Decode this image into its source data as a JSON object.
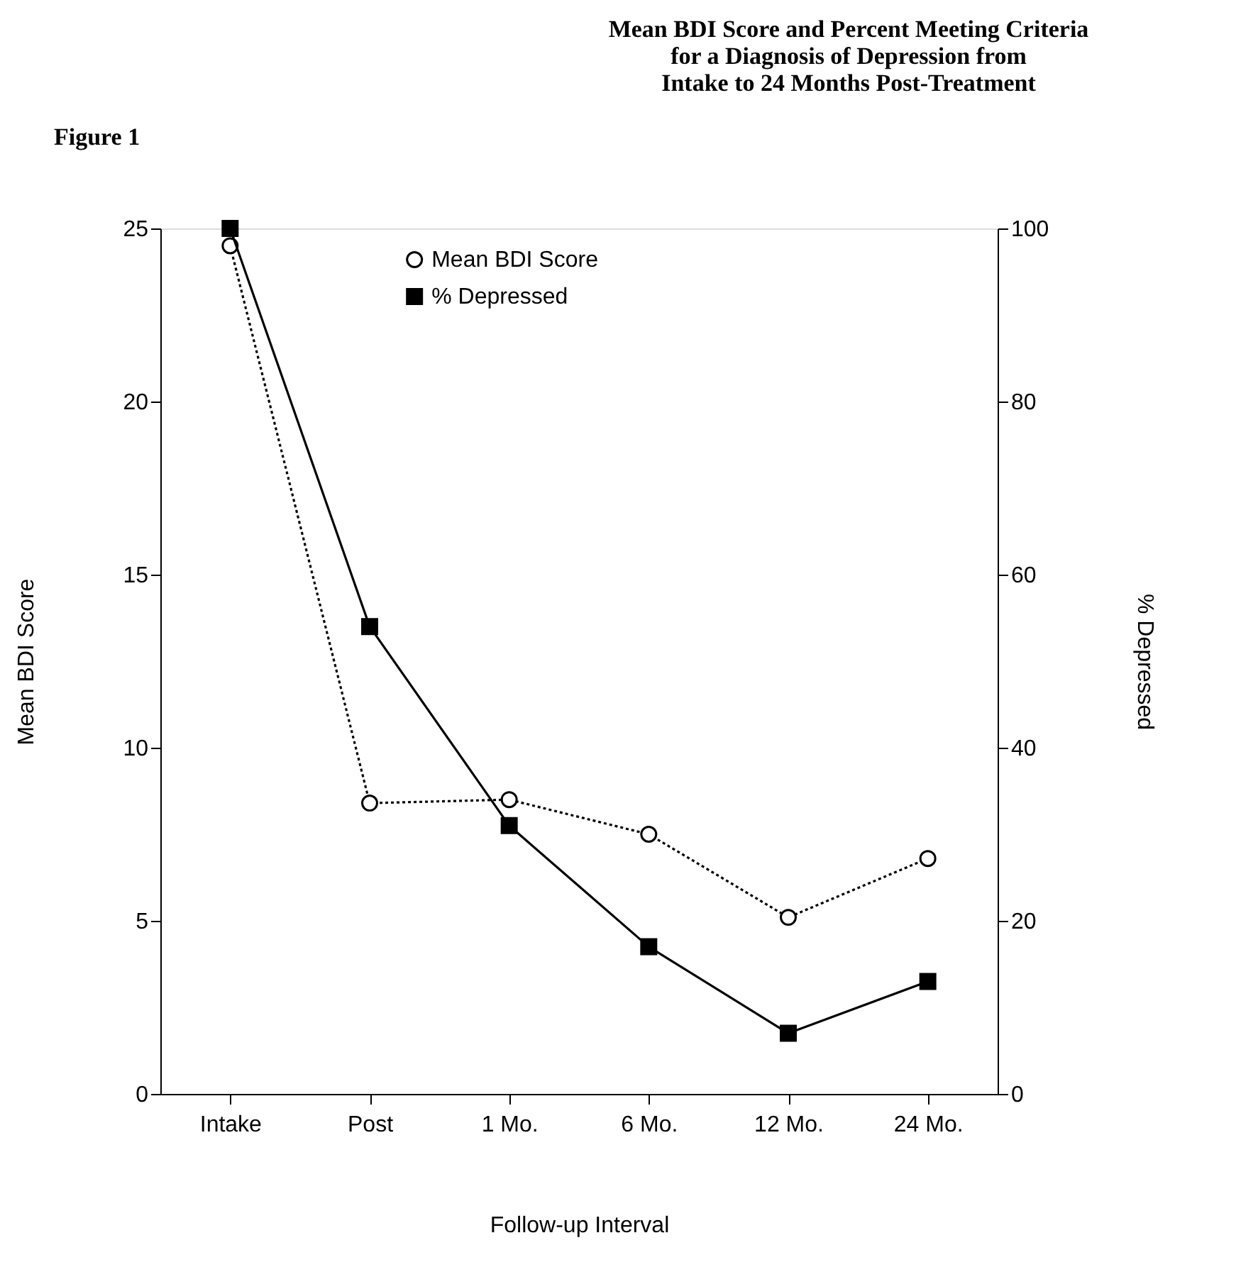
{
  "chart_data": {
    "type": "line",
    "title": "Mean BDI Score and Percent Meeting Criteria\nfor a Diagnosis of Depression from\nIntake to 24 Months Post-Treatment",
    "annotations": [
      "Figure 1"
    ],
    "xlabel": "Follow-up Interval",
    "ylabel": "Mean BDI Score",
    "y2label": "% Depressed",
    "categories": [
      "Intake",
      "Post",
      "1 Mo.",
      "6 Mo.",
      "12 Mo.",
      "24 Mo."
    ],
    "series": [
      {
        "name": "Mean BDI Score",
        "color": "#000000",
        "marker": "circle",
        "line_style": "dotted",
        "values": [
          24.5,
          8.4,
          8.5,
          7.5,
          5.1,
          6.8
        ]
      },
      {
        "name": "% Depressed",
        "color": "#000000",
        "marker": "square",
        "line_style": "solid",
        "axis": "y2",
        "values": [
          100,
          54,
          31,
          17,
          7,
          13
        ]
      }
    ],
    "ylim": [
      0,
      25
    ],
    "yticks": [
      0,
      5,
      10,
      15,
      20,
      25
    ],
    "y2lim": [
      0,
      100
    ],
    "y2ticks": [
      0,
      20,
      40,
      60,
      80,
      100
    ],
    "legend": "top",
    "grid": false
  }
}
